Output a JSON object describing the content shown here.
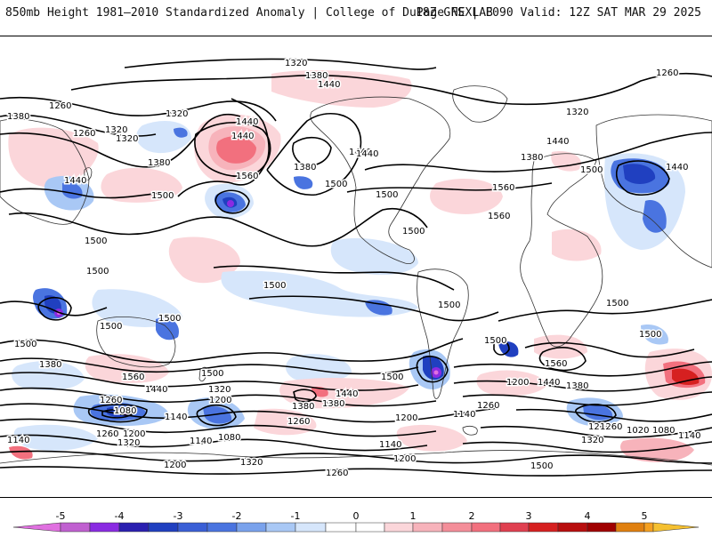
{
  "header": {
    "title": "850mb Height 1981–2010 Standardized Anomaly | College of DuPage NEXLAB",
    "run_info": "18Z GFS | F090 Valid: 12Z SAT MAR 29 2025"
  },
  "colors": {
    "anom_neg5": "#e070e0",
    "anom_neg4": "#8a2be2",
    "anom_neg3": "#2040c0",
    "anom_neg2": "#4a74e0",
    "anom_neg1": "#a9c8f5",
    "anom_neg05": "#d6e6fb",
    "anom_pos05": "#fbd6da",
    "anom_pos1": "#f7b3bb",
    "anom_pos2": "#f2707e",
    "anom_pos3": "#d62020",
    "anom_pos4": "#a00000",
    "anom_pos5": "#f5a020",
    "contour": "#000000",
    "coast": "#333333"
  },
  "contour_labels": [
    {
      "id": "c1",
      "text": "1320"
    },
    {
      "id": "c2",
      "text": "1380"
    },
    {
      "id": "c3",
      "text": "1440"
    },
    {
      "id": "c4",
      "text": "1260"
    },
    {
      "id": "c5",
      "text": "1260"
    },
    {
      "id": "c6",
      "text": "1380"
    },
    {
      "id": "c7",
      "text": "1320"
    },
    {
      "id": "c8",
      "text": "1320"
    },
    {
      "id": "c9",
      "text": "1440"
    },
    {
      "id": "c10",
      "text": "1560"
    },
    {
      "id": "c11",
      "text": "1380"
    },
    {
      "id": "c12",
      "text": "1500"
    },
    {
      "id": "c13",
      "text": "1440"
    },
    {
      "id": "c14",
      "text": "1500"
    },
    {
      "id": "c15",
      "text": "1440"
    },
    {
      "id": "c16",
      "text": "1500"
    },
    {
      "id": "c17",
      "text": "1500"
    },
    {
      "id": "c18",
      "text": "1560"
    },
    {
      "id": "c19",
      "text": "1560"
    },
    {
      "id": "c20",
      "text": "1500"
    },
    {
      "id": "c21",
      "text": "1380"
    },
    {
      "id": "c22",
      "text": "1320"
    },
    {
      "id": "c23",
      "text": "1440"
    },
    {
      "id": "c24",
      "text": "1440"
    },
    {
      "id": "c25",
      "text": "1500"
    },
    {
      "id": "c26",
      "text": "1500"
    },
    {
      "id": "c27",
      "text": "1500"
    },
    {
      "id": "c28",
      "text": "1500"
    },
    {
      "id": "c29",
      "text": "1500"
    },
    {
      "id": "c30",
      "text": "1500"
    },
    {
      "id": "c31",
      "text": "1500"
    },
    {
      "id": "c32",
      "text": "1560"
    },
    {
      "id": "c33",
      "text": "1500"
    },
    {
      "id": "c34",
      "text": "1560"
    },
    {
      "id": "c35",
      "text": "1500"
    },
    {
      "id": "c36",
      "text": "1500"
    },
    {
      "id": "c37",
      "text": "1500"
    },
    {
      "id": "c38",
      "text": "1380"
    },
    {
      "id": "c39",
      "text": "1560"
    },
    {
      "id": "c40",
      "text": "1440"
    },
    {
      "id": "c41",
      "text": "1500"
    },
    {
      "id": "c42",
      "text": "1320"
    },
    {
      "id": "c43",
      "text": "1260"
    },
    {
      "id": "c44",
      "text": "1200"
    },
    {
      "id": "c45",
      "text": "1080"
    },
    {
      "id": "c46",
      "text": "1260"
    },
    {
      "id": "c47",
      "text": "1200"
    },
    {
      "id": "c48",
      "text": "1320"
    },
    {
      "id": "c49",
      "text": "1140"
    },
    {
      "id": "c50",
      "text": "1140"
    },
    {
      "id": "c51",
      "text": "1080"
    },
    {
      "id": "c52",
      "text": "1140"
    },
    {
      "id": "c53",
      "text": "1440"
    },
    {
      "id": "c54",
      "text": "1380"
    },
    {
      "id": "c55",
      "text": "1380"
    },
    {
      "id": "c56",
      "text": "1260"
    },
    {
      "id": "c57",
      "text": "1200"
    },
    {
      "id": "c58",
      "text": "1140"
    },
    {
      "id": "c59",
      "text": "1140"
    },
    {
      "id": "c60",
      "text": "1200"
    },
    {
      "id": "c61",
      "text": "1260"
    },
    {
      "id": "c62",
      "text": "1200"
    },
    {
      "id": "c63",
      "text": "1440"
    },
    {
      "id": "c64",
      "text": "1380"
    },
    {
      "id": "c65",
      "text": "1320"
    },
    {
      "id": "c66",
      "text": "1200"
    },
    {
      "id": "c67",
      "text": "1260"
    },
    {
      "id": "c68",
      "text": "1020"
    },
    {
      "id": "c69",
      "text": "1080"
    },
    {
      "id": "c70",
      "text": "1140"
    },
    {
      "id": "c71",
      "text": "1320"
    },
    {
      "id": "c72",
      "text": "1200"
    },
    {
      "id": "c73",
      "text": "1260"
    },
    {
      "id": "c74",
      "text": "1500"
    },
    {
      "id": "c75",
      "text": "1260"
    },
    {
      "id": "c76",
      "text": "1320"
    },
    {
      "id": "c77",
      "text": "1440"
    },
    {
      "id": "c78",
      "text": "1380"
    },
    {
      "id": "c79",
      "text": "1440"
    },
    {
      "id": "c80",
      "text": "1500"
    }
  ],
  "colorbar": {
    "ticks": [
      "-5",
      "-4",
      "-3",
      "-2",
      "-1",
      "0",
      "1",
      "2",
      "3",
      "4",
      "5"
    ]
  }
}
